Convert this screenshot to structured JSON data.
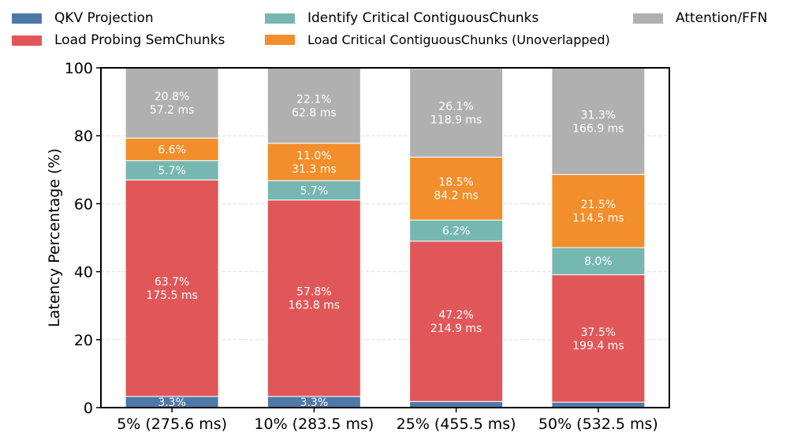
{
  "chart_data": {
    "type": "stacked-bar",
    "title": "",
    "xlabel": "",
    "ylabel": "Latency Percentage (%)",
    "ylim": [
      0,
      100
    ],
    "yticks": [
      0,
      20,
      40,
      60,
      80,
      100
    ],
    "grid": true,
    "legend_position": "top",
    "categories": [
      "5% (275.6 ms)",
      "10% (283.5 ms)",
      "25% (455.5 ms)",
      "50% (532.5 ms)"
    ],
    "series": [
      {
        "name": "QKV Projection",
        "color": "#4e79a7",
        "values": [
          3.3,
          3.3,
          1.8,
          1.6
        ],
        "labels": [
          [
            "3.3%"
          ],
          [
            "3.3%"
          ],
          [],
          []
        ]
      },
      {
        "name": "Load Probing SemChunks",
        "color": "#e15759",
        "values": [
          63.7,
          57.8,
          47.2,
          37.5
        ],
        "labels": [
          [
            "63.7%",
            "175.5 ms"
          ],
          [
            "57.8%",
            "163.8 ms"
          ],
          [
            "47.2%",
            "214.9 ms"
          ],
          [
            "37.5%",
            "199.4 ms"
          ]
        ]
      },
      {
        "name": "Identify Critical ContiguousChunks",
        "color": "#76b7b2",
        "values": [
          5.7,
          5.7,
          6.2,
          8.0
        ],
        "labels": [
          [
            "5.7%"
          ],
          [
            "5.7%"
          ],
          [
            "6.2%"
          ],
          [
            "8.0%"
          ]
        ]
      },
      {
        "name": "Load Critical ContiguousChunks  (Unoverlapped)",
        "color": "#f28e2b",
        "values": [
          6.6,
          11.0,
          18.5,
          21.5
        ],
        "labels": [
          [
            "6.6%"
          ],
          [
            "11.0%",
            "31.3 ms"
          ],
          [
            "18.5%",
            "84.2 ms"
          ],
          [
            "21.5%",
            "114.5 ms"
          ]
        ]
      },
      {
        "name": "Attention/FFN",
        "color": "#b0b0b0",
        "values": [
          20.8,
          22.1,
          26.1,
          31.3
        ],
        "labels": [
          [
            "20.8%",
            "57.2 ms"
          ],
          [
            "22.1%",
            "62.8 ms"
          ],
          [
            "26.1%",
            "118.9 ms"
          ],
          [
            "31.3%",
            "166.9 ms"
          ]
        ]
      }
    ]
  }
}
